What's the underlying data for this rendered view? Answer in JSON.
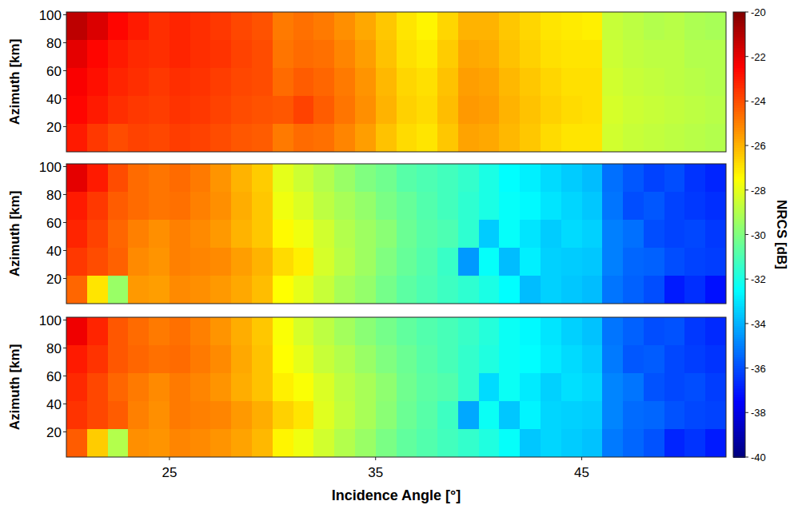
{
  "chart_data": [
    {
      "type": "heatmap",
      "ylabel": "Azimuth [km]",
      "tick_labels": "y",
      "xlim": [
        20,
        52
      ],
      "ylim": [
        2,
        102
      ],
      "yticks": [
        20,
        40,
        60,
        80,
        100
      ],
      "x": [
        20.5,
        21.5,
        22.5,
        23.5,
        24.5,
        25.5,
        26.5,
        27.5,
        28.5,
        29.5,
        30.5,
        31.5,
        32.5,
        33.5,
        34.5,
        35.5,
        36.5,
        37.5,
        38.5,
        39.5,
        40.5,
        41.5,
        42.5,
        43.5,
        44.5,
        45.5,
        46.5,
        47.5,
        48.5,
        49.5,
        50.5,
        51.5
      ],
      "y": [
        92,
        72,
        52,
        32,
        12
      ],
      "values": [
        [
          -21.2,
          -21.8,
          -22.6,
          -23.0,
          -23.4,
          -23.2,
          -23.4,
          -23.6,
          -23.9,
          -24.1,
          -24.9,
          -24.7,
          -24.9,
          -25.3,
          -25.8,
          -26.4,
          -27.0,
          -27.3,
          -26.7,
          -26.0,
          -26.0,
          -26.4,
          -26.7,
          -27.0,
          -27.1,
          -27.2,
          -28.6,
          -28.8,
          -29.0,
          -28.9,
          -29.1,
          -29.2
        ],
        [
          -22.0,
          -22.6,
          -23.0,
          -23.3,
          -23.4,
          -23.2,
          -23.4,
          -23.5,
          -23.8,
          -24.0,
          -24.8,
          -24.6,
          -24.7,
          -25.1,
          -25.6,
          -26.3,
          -26.9,
          -27.1,
          -26.5,
          -25.8,
          -25.9,
          -26.3,
          -26.6,
          -26.9,
          -27.0,
          -27.0,
          -28.5,
          -28.7,
          -28.8,
          -28.8,
          -29.0,
          -29.0
        ],
        [
          -22.4,
          -22.8,
          -23.2,
          -23.4,
          -23.6,
          -23.4,
          -23.5,
          -23.7,
          -23.9,
          -24.0,
          -24.6,
          -24.3,
          -24.5,
          -24.9,
          -25.4,
          -26.1,
          -26.7,
          -26.9,
          -26.3,
          -25.6,
          -25.7,
          -26.1,
          -26.4,
          -26.7,
          -26.9,
          -26.9,
          -28.4,
          -28.6,
          -28.7,
          -28.8,
          -28.9,
          -29.0
        ],
        [
          -22.6,
          -23.0,
          -23.4,
          -23.6,
          -23.7,
          -23.5,
          -23.6,
          -23.8,
          -24.0,
          -24.1,
          -24.2,
          -23.8,
          -24.3,
          -24.8,
          -25.3,
          -26.0,
          -26.6,
          -26.8,
          -26.2,
          -25.5,
          -25.6,
          -26.0,
          -26.3,
          -26.6,
          -26.8,
          -26.9,
          -28.3,
          -28.5,
          -28.6,
          -28.7,
          -28.8,
          -28.9
        ],
        [
          -23.0,
          -23.6,
          -24.0,
          -23.8,
          -23.9,
          -23.7,
          -23.8,
          -24.0,
          -24.2,
          -24.3,
          -24.9,
          -24.6,
          -24.7,
          -25.1,
          -25.6,
          -26.3,
          -26.8,
          -27.0,
          -26.4,
          -25.7,
          -25.8,
          -26.1,
          -26.4,
          -26.8,
          -27.0,
          -27.0,
          -28.4,
          -28.6,
          -28.7,
          -28.8,
          -28.9,
          -29.0
        ]
      ],
      "colorbar_range": [
        -40,
        -20
      ],
      "colorbar_ticks": [
        -20,
        -22,
        -24,
        -26,
        -28,
        -30,
        -32,
        -34,
        -36,
        -38,
        -40
      ],
      "colorbar_label": "NRCS [dB]"
    },
    {
      "type": "heatmap",
      "ylabel": "Azimuth [km]",
      "tick_labels": "y",
      "xlim": [
        20,
        52
      ],
      "ylim": [
        2,
        102
      ],
      "yticks": [
        20,
        40,
        60,
        80,
        100
      ],
      "x": [
        20.5,
        21.5,
        22.5,
        23.5,
        24.5,
        25.5,
        26.5,
        27.5,
        28.5,
        29.5,
        30.5,
        31.5,
        32.5,
        33.5,
        34.5,
        35.5,
        36.5,
        37.5,
        38.5,
        39.5,
        40.5,
        41.5,
        42.5,
        43.5,
        44.5,
        45.5,
        46.5,
        47.5,
        48.5,
        49.5,
        50.5,
        51.5
      ],
      "y": [
        92,
        72,
        52,
        32,
        12
      ],
      "values": [
        [
          -22.0,
          -23.0,
          -24.0,
          -24.6,
          -24.8,
          -24.6,
          -24.9,
          -25.4,
          -26.0,
          -26.5,
          -28.0,
          -28.5,
          -29.0,
          -29.5,
          -30.0,
          -30.3,
          -30.8,
          -31.0,
          -31.2,
          -31.5,
          -32.0,
          -32.5,
          -32.8,
          -33.2,
          -33.5,
          -33.8,
          -35.3,
          -35.8,
          -36.2,
          -36.0,
          -36.5,
          -36.8
        ],
        [
          -23.0,
          -23.6,
          -24.3,
          -24.6,
          -24.8,
          -24.7,
          -25.0,
          -25.3,
          -25.9,
          -26.4,
          -27.8,
          -28.2,
          -28.8,
          -29.2,
          -29.6,
          -30.1,
          -30.5,
          -30.9,
          -31.2,
          -31.6,
          -32.0,
          -32.4,
          -32.6,
          -33.0,
          -33.3,
          -33.6,
          -35.2,
          -36.0,
          -35.8,
          -36.2,
          -36.4,
          -36.6
        ],
        [
          -23.2,
          -23.8,
          -24.5,
          -25.0,
          -25.3,
          -25.0,
          -25.2,
          -25.5,
          -26.0,
          -26.4,
          -27.4,
          -27.8,
          -28.4,
          -29.0,
          -29.4,
          -29.8,
          -30.4,
          -30.8,
          -31.0,
          -31.6,
          -33.5,
          -32.4,
          -33.0,
          -33.5,
          -33.2,
          -33.4,
          -35.0,
          -35.3,
          -36.0,
          -36.2,
          -36.1,
          -36.4
        ],
        [
          -23.6,
          -24.0,
          -24.4,
          -25.2,
          -25.4,
          -25.0,
          -25.1,
          -25.2,
          -25.6,
          -26.0,
          -26.8,
          -27.2,
          -28.3,
          -28.9,
          -29.4,
          -30.0,
          -30.5,
          -30.9,
          -31.4,
          -34.5,
          -32.4,
          -33.8,
          -32.8,
          -33.4,
          -33.5,
          -33.6,
          -35.0,
          -35.5,
          -35.6,
          -36.0,
          -36.2,
          -36.3
        ],
        [
          -24.5,
          -27.0,
          -29.5,
          -25.5,
          -25.6,
          -25.2,
          -25.3,
          -25.5,
          -25.8,
          -26.2,
          -27.5,
          -28.0,
          -28.6,
          -29.2,
          -29.6,
          -30.2,
          -30.7,
          -31.0,
          -31.3,
          -31.6,
          -32.0,
          -32.5,
          -33.8,
          -33.4,
          -33.6,
          -33.8,
          -35.2,
          -35.6,
          -36.0,
          -37.0,
          -36.6,
          -37.2
        ]
      ]
    },
    {
      "type": "heatmap",
      "ylabel": "Azimuth [km]",
      "xlabel": "Incidence Angle [°]",
      "xlim": [
        20,
        52
      ],
      "xticks": [
        25,
        35,
        45
      ],
      "ylim": [
        2,
        102
      ],
      "yticks": [
        20,
        40,
        60,
        80,
        100
      ],
      "x": [
        20.5,
        21.5,
        22.5,
        23.5,
        24.5,
        25.5,
        26.5,
        27.5,
        28.5,
        29.5,
        30.5,
        31.5,
        32.5,
        33.5,
        34.5,
        35.5,
        36.5,
        37.5,
        38.5,
        39.5,
        40.5,
        41.5,
        42.5,
        43.5,
        44.5,
        45.5,
        46.5,
        47.5,
        48.5,
        49.5,
        50.5,
        51.5
      ],
      "y": [
        92,
        72,
        52,
        32,
        12
      ],
      "values": [
        [
          -22.2,
          -23.2,
          -24.2,
          -24.6,
          -24.9,
          -24.7,
          -25.0,
          -25.4,
          -25.9,
          -26.4,
          -27.6,
          -28.3,
          -28.8,
          -29.3,
          -29.8,
          -30.2,
          -30.6,
          -30.9,
          -31.1,
          -31.4,
          -31.8,
          -32.3,
          -32.6,
          -33.0,
          -33.4,
          -33.7,
          -35.2,
          -35.6,
          -36.0,
          -35.9,
          -36.4,
          -36.7
        ],
        [
          -23.0,
          -23.5,
          -24.2,
          -24.5,
          -24.7,
          -24.6,
          -24.9,
          -25.2,
          -25.8,
          -26.3,
          -27.5,
          -28.0,
          -28.6,
          -29.0,
          -29.5,
          -30.0,
          -30.4,
          -30.8,
          -31.1,
          -31.5,
          -31.9,
          -32.3,
          -32.5,
          -32.9,
          -33.2,
          -33.5,
          -35.1,
          -35.8,
          -35.7,
          -36.1,
          -36.3,
          -36.5
        ],
        [
          -23.3,
          -23.9,
          -24.5,
          -24.9,
          -25.2,
          -24.9,
          -25.1,
          -25.4,
          -25.9,
          -26.3,
          -27.2,
          -27.6,
          -28.2,
          -28.8,
          -29.2,
          -29.7,
          -30.3,
          -30.7,
          -30.9,
          -31.5,
          -33.2,
          -32.3,
          -32.9,
          -33.4,
          -33.1,
          -33.3,
          -34.9,
          -35.2,
          -35.9,
          -36.1,
          -36.0,
          -36.3
        ],
        [
          -23.5,
          -23.9,
          -24.3,
          -25.0,
          -25.3,
          -24.9,
          -25.0,
          -25.1,
          -25.5,
          -25.9,
          -26.6,
          -27.0,
          -28.1,
          -28.7,
          -29.2,
          -29.8,
          -30.4,
          -30.8,
          -31.3,
          -34.2,
          -32.3,
          -33.6,
          -32.7,
          -33.3,
          -33.4,
          -33.5,
          -34.9,
          -35.4,
          -35.5,
          -35.9,
          -36.1,
          -36.2
        ],
        [
          -24.3,
          -26.5,
          -29.0,
          -25.3,
          -25.4,
          -25.1,
          -25.2,
          -25.4,
          -25.7,
          -26.1,
          -27.3,
          -27.8,
          -28.4,
          -29.0,
          -29.5,
          -30.1,
          -30.6,
          -30.9,
          -31.2,
          -31.5,
          -31.9,
          -32.4,
          -33.6,
          -33.3,
          -33.5,
          -33.7,
          -35.1,
          -35.5,
          -35.9,
          -36.8,
          -36.5,
          -37.0
        ]
      ]
    }
  ]
}
